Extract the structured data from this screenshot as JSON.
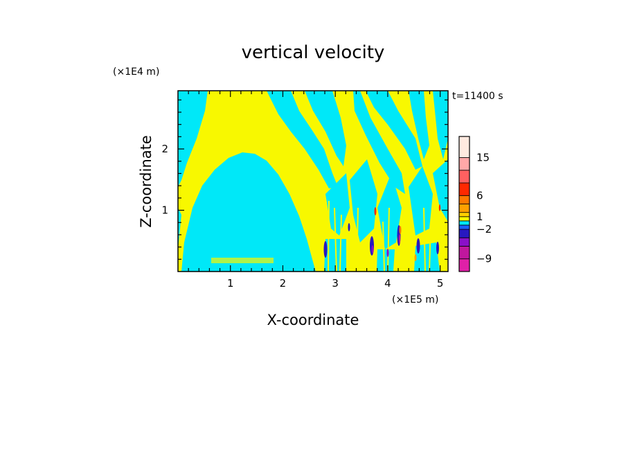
{
  "chart_data": {
    "type": "heatmap",
    "title": "vertical velocity",
    "xlabel": "X-coordinate",
    "ylabel": "Z-coordinate",
    "x_unit": "(×1E5 m)",
    "y_unit": "(×1E4 m)",
    "time_label": "t=11400 s",
    "xlim": [
      0,
      5.15
    ],
    "ylim": [
      0,
      2.95
    ],
    "xticks": [
      "1",
      "2",
      "3",
      "4",
      "5"
    ],
    "yticks": [
      "1",
      "2"
    ],
    "colorbar": {
      "labels": [
        "15",
        "6",
        "1",
        "−2",
        "−9"
      ],
      "levels": [
        {
          "min": -12,
          "max": -9,
          "color": "#e020a8"
        },
        {
          "min": -9,
          "max": -6,
          "color": "#c0179e"
        },
        {
          "min": -6,
          "max": -4,
          "color": "#8a10c8"
        },
        {
          "min": -4,
          "max": -2,
          "color": "#2818c0"
        },
        {
          "min": -2,
          "max": -1,
          "color": "#1a60ff"
        },
        {
          "min": -1,
          "max": 0,
          "color": "#00e8f8"
        },
        {
          "min": 0,
          "max": 1,
          "color": "#f8f800"
        },
        {
          "min": 1,
          "max": 2,
          "color": "#ffd000"
        },
        {
          "min": 2,
          "max": 4,
          "color": "#ffa000"
        },
        {
          "min": 4,
          "max": 6,
          "color": "#ff7800"
        },
        {
          "min": 6,
          "max": 9,
          "color": "#ff2800"
        },
        {
          "min": 9,
          "max": 12,
          "color": "#ff6060"
        },
        {
          "min": 12,
          "max": 15,
          "color": "#ffa8a8"
        },
        {
          "min": 15,
          "max": 20,
          "color": "#ffeae0"
        }
      ]
    },
    "dominant_colors": {
      "negative": "#00e8f8",
      "positive": "#f8f800"
    }
  }
}
